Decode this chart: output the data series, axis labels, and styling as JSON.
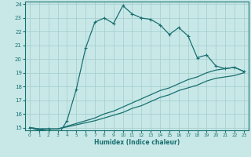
{
  "title": "",
  "xlabel": "Humidex (Indice chaleur)",
  "bg_color": "#c8e8e8",
  "grid_color": "#a8d0d0",
  "line_color": "#1a7070",
  "xlim": [
    -0.5,
    23.5
  ],
  "ylim": [
    14.8,
    24.2
  ],
  "xticks": [
    0,
    1,
    2,
    3,
    4,
    5,
    6,
    7,
    8,
    9,
    10,
    11,
    12,
    13,
    14,
    15,
    16,
    17,
    18,
    19,
    20,
    21,
    22,
    23
  ],
  "yticks": [
    15,
    16,
    17,
    18,
    19,
    20,
    21,
    22,
    23,
    24
  ],
  "line1_x": [
    0,
    1,
    2,
    3,
    4,
    5,
    6,
    7,
    8,
    9,
    10,
    11,
    12,
    13,
    14,
    15,
    16,
    17,
    18,
    19,
    20,
    21,
    22,
    23
  ],
  "line1_y": [
    15.0,
    14.8,
    14.9,
    14.4,
    15.5,
    17.8,
    20.8,
    22.7,
    23.0,
    22.6,
    23.9,
    23.3,
    23.0,
    22.9,
    22.5,
    21.8,
    22.3,
    21.7,
    20.1,
    20.3,
    19.5,
    19.3,
    19.4,
    19.1
  ],
  "line2_x": [
    0,
    1,
    2,
    3,
    4,
    5,
    6,
    7,
    8,
    9,
    10,
    11,
    12,
    13,
    14,
    15,
    16,
    17,
    18,
    19,
    20,
    21,
    22,
    23
  ],
  "line2_y": [
    15.0,
    14.9,
    14.9,
    14.9,
    15.1,
    15.3,
    15.5,
    15.7,
    16.0,
    16.2,
    16.5,
    16.8,
    17.1,
    17.4,
    17.7,
    17.9,
    18.2,
    18.5,
    18.7,
    19.0,
    19.2,
    19.3,
    19.4,
    19.1
  ],
  "line3_x": [
    0,
    1,
    2,
    3,
    4,
    5,
    6,
    7,
    8,
    9,
    10,
    11,
    12,
    13,
    14,
    15,
    16,
    17,
    18,
    19,
    20,
    21,
    22,
    23
  ],
  "line3_y": [
    15.0,
    14.9,
    14.9,
    14.9,
    15.05,
    15.2,
    15.35,
    15.5,
    15.7,
    15.9,
    16.1,
    16.4,
    16.6,
    16.9,
    17.2,
    17.4,
    17.7,
    17.9,
    18.1,
    18.4,
    18.6,
    18.7,
    18.8,
    19.0
  ]
}
